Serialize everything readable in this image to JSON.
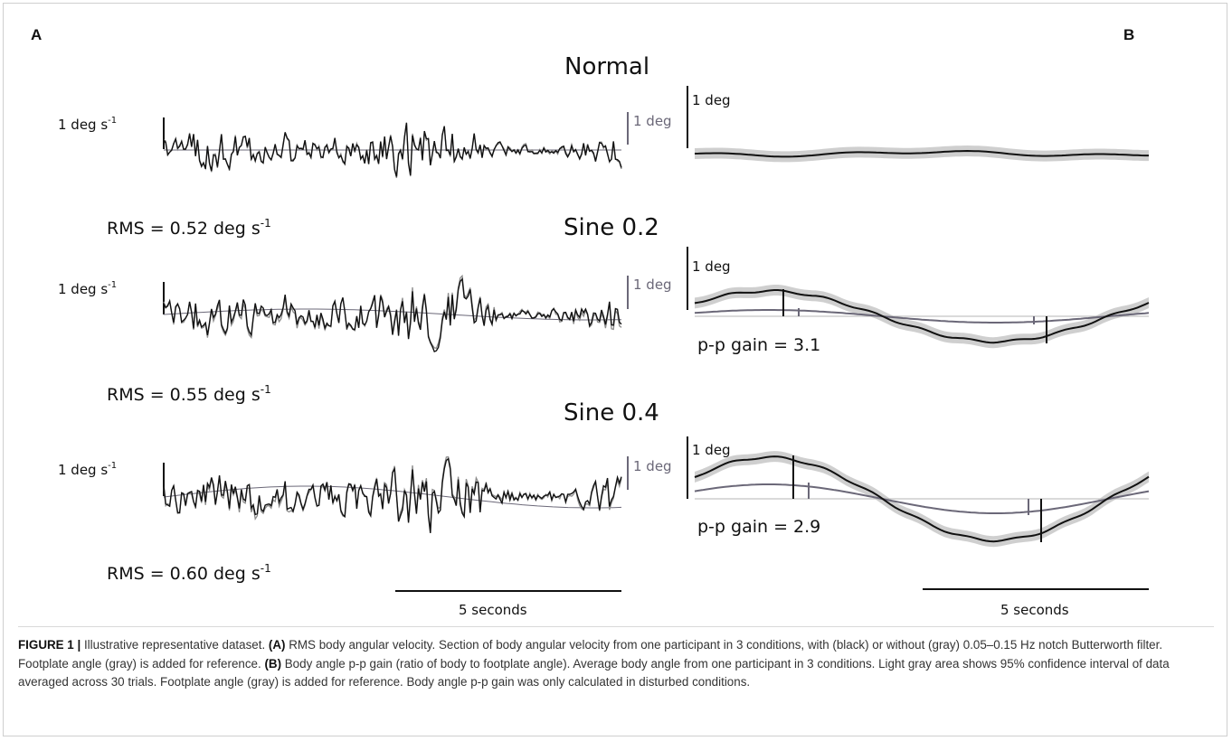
{
  "figure": {
    "panel_a_letter": "A",
    "panel_b_letter": "B",
    "panel_a": {
      "velocity_scale": "1 deg s",
      "velocity_scale_exp": "-1",
      "footplate_scale": "1 deg",
      "time_scale": "5 seconds",
      "rows": [
        {
          "condition": "Normal",
          "rms_prefix": "RMS = 0.52 deg s",
          "rms_exp": "-1"
        },
        {
          "condition": "Sine 0.2",
          "rms_prefix": "RMS = 0.55 deg s",
          "rms_exp": "-1"
        },
        {
          "condition": "Sine 0.4",
          "rms_prefix": "RMS = 0.60 deg s",
          "rms_exp": "-1"
        }
      ]
    },
    "panel_b": {
      "angle_scale": "1 deg",
      "time_scale": "5 seconds",
      "rows": [
        {
          "condition": "Normal",
          "gain": ""
        },
        {
          "condition": "Sine 0.2",
          "gain": "p-p gain = 3.1"
        },
        {
          "condition": "Sine 0.4",
          "gain": "p-p gain = 2.9"
        }
      ]
    },
    "colors": {
      "black_trace": "#111111",
      "gray_trace": "#8c8c8c",
      "footplate": "#6b6878",
      "confidence_band": "#cfcfcf"
    }
  },
  "caption": {
    "label": "FIGURE 1 |",
    "intro": " Illustrative representative dataset. ",
    "a_tag": "(A)",
    "a_text": " RMS body angular velocity. Section of body angular velocity from one participant in 3 conditions, with (black) or without (gray) 0.05–0.15 Hz notch Butterworth filter. Footplate angle (gray) is added for reference. ",
    "b_tag": "(B)",
    "b_text": " Body angle p-p gain (ratio of body to footplate angle). Average body angle from one participant in 3 conditions. Light gray area shows 95% confidence interval of data averaged across 30 trials. Footplate angle (gray) is added for reference. Body angle p-p gain was only calculated in disturbed conditions."
  }
}
